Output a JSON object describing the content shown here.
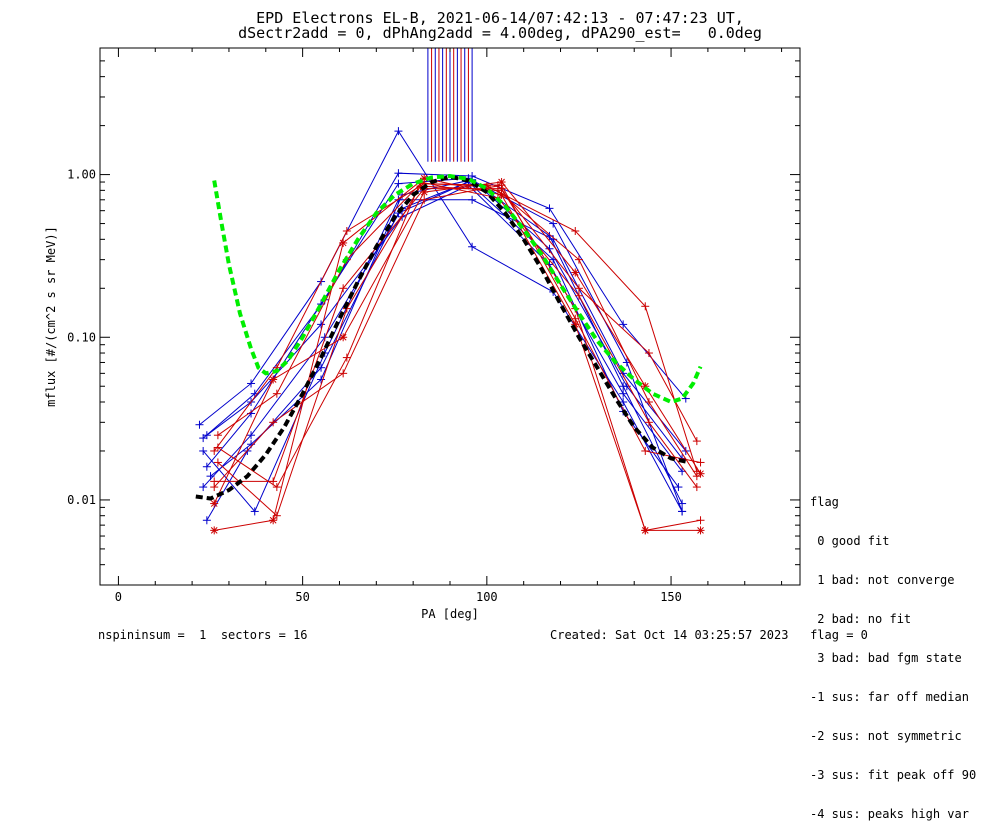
{
  "title_line1": "EPD Electrons EL-B, 2021-06-14/07:42:13 - 07:47:23 UT,",
  "title_line2": "dSectr2add = 0, dPhAng2add = 4.00deg, dPA290_est=   0.0deg",
  "footer": {
    "left": "nspininsum =  1  sectors = 16",
    "right": "Created: Sat Oct 14 03:25:57 2023   flag = 0"
  },
  "legend": {
    "title": "flag",
    "items": [
      " 0 good fit",
      " 1 bad: not converge",
      " 2 bad: no fit",
      " 3 bad: bad fgm state",
      "-1 sus: far off median",
      "-2 sus: not symmetric",
      "-3 sus: fit peak off 90",
      "-4 sus: peaks high var"
    ]
  },
  "chart_data": {
    "type": "line",
    "xlabel": "PA [deg]",
    "ylabel": "mflux [#/(cm^2 s sr MeV)]",
    "xlim": [
      -5,
      185
    ],
    "ylim": [
      0.003,
      6
    ],
    "yscale": "log",
    "xticks": [
      0,
      50,
      100,
      150
    ],
    "xtick_labels": [
      "0",
      "50",
      "100",
      "150"
    ],
    "yticks": [
      0.01,
      0.1,
      1.0
    ],
    "ytick_labels": [
      "0.01",
      "0.10",
      "1.00"
    ],
    "colors": {
      "blue": "#0000cc",
      "red": "#cc0000",
      "green": "#00ee00",
      "black": "#000000"
    },
    "vertical_markers": [
      {
        "x": 84,
        "color": "#0000cc"
      },
      {
        "x": 85,
        "color": "#cc0000"
      },
      {
        "x": 86,
        "color": "#0000cc"
      },
      {
        "x": 87,
        "color": "#cc0000"
      },
      {
        "x": 88,
        "color": "#0000cc"
      },
      {
        "x": 89,
        "color": "#cc0000"
      },
      {
        "x": 90,
        "color": "#0000cc"
      },
      {
        "x": 91,
        "color": "#cc0000"
      },
      {
        "x": 92,
        "color": "#0000cc"
      },
      {
        "x": 93,
        "color": "#cc0000"
      },
      {
        "x": 94,
        "color": "#0000cc"
      },
      {
        "x": 95,
        "color": "#cc0000"
      },
      {
        "x": 96,
        "color": "#0000cc"
      }
    ],
    "marker_top": 6,
    "marker_bottom": 1.2,
    "series": [
      {
        "color": "#0000cc",
        "marker": "plus",
        "x": [
          22,
          36,
          55,
          76,
          96,
          118,
          137,
          153
        ],
        "y": [
          0.029,
          0.052,
          0.22,
          1.85,
          0.36,
          0.19,
          0.04,
          0.0085
        ]
      },
      {
        "color": "#0000cc",
        "marker": "plus",
        "x": [
          23,
          37,
          56,
          76,
          96,
          117,
          137,
          154
        ],
        "y": [
          0.024,
          0.045,
          0.17,
          1.02,
          0.98,
          0.62,
          0.12,
          0.042
        ]
      },
      {
        "color": "#0000cc",
        "marker": "plus",
        "x": [
          24,
          36,
          55,
          76,
          95,
          118,
          138,
          153
        ],
        "y": [
          0.016,
          0.034,
          0.16,
          0.88,
          0.95,
          0.5,
          0.07,
          0.0085
        ]
      },
      {
        "color": "#0000cc",
        "marker": "plus",
        "x": [
          23,
          36,
          56,
          77,
          96,
          117,
          137,
          153
        ],
        "y": [
          0.012,
          0.025,
          0.1,
          0.62,
          0.92,
          0.42,
          0.05,
          0.0095
        ]
      },
      {
        "color": "#0000cc",
        "marker": "plus",
        "x": [
          24,
          35,
          55,
          76,
          95,
          118,
          137,
          152
        ],
        "y": [
          0.0075,
          0.02,
          0.065,
          0.58,
          0.9,
          0.3,
          0.035,
          0.012
        ]
      },
      {
        "color": "#0000cc",
        "marker": "plus",
        "x": [
          25,
          36,
          55,
          77,
          96,
          117,
          138,
          153
        ],
        "y": [
          0.014,
          0.022,
          0.055,
          0.75,
          0.93,
          0.35,
          0.05,
          0.018
        ]
      },
      {
        "color": "#0000cc",
        "marker": "plus",
        "x": [
          23,
          37,
          56,
          76,
          96,
          118,
          137,
          154
        ],
        "y": [
          0.02,
          0.0085,
          0.08,
          0.7,
          0.7,
          0.4,
          0.06,
          0.02
        ]
      },
      {
        "color": "#0000cc",
        "marker": "plus",
        "x": [
          24,
          36,
          55,
          77,
          95,
          117,
          137,
          153
        ],
        "y": [
          0.025,
          0.04,
          0.12,
          0.55,
          0.86,
          0.28,
          0.045,
          0.015
        ]
      },
      {
        "color": "#cc0000",
        "marker": "plus",
        "x": [
          26,
          43,
          62,
          83,
          100,
          124,
          143,
          157
        ],
        "y": [
          0.02,
          0.065,
          0.45,
          0.88,
          0.85,
          0.45,
          0.155,
          0.015
        ]
      },
      {
        "color": "#cc0000",
        "marker": "star",
        "x": [
          26,
          42,
          61,
          83,
          104,
          124,
          143,
          158
        ],
        "y": [
          0.0065,
          0.0075,
          0.38,
          0.95,
          0.75,
          0.12,
          0.0065,
          0.0065
        ]
      },
      {
        "color": "#cc0000",
        "marker": "plus",
        "x": [
          27,
          43,
          62,
          82,
          103,
          125,
          144,
          157
        ],
        "y": [
          0.025,
          0.045,
          0.3,
          0.88,
          0.86,
          0.2,
          0.08,
          0.023
        ]
      },
      {
        "color": "#cc0000",
        "marker": "plus",
        "x": [
          26,
          42,
          61,
          83,
          104,
          124,
          143,
          158
        ],
        "y": [
          0.013,
          0.013,
          0.2,
          0.82,
          0.82,
          0.15,
          0.0065,
          0.0075
        ]
      },
      {
        "color": "#cc0000",
        "marker": "plus",
        "x": [
          27,
          43,
          62,
          82,
          103,
          125,
          144,
          157
        ],
        "y": [
          0.017,
          0.008,
          0.15,
          0.85,
          0.8,
          0.3,
          0.04,
          0.014
        ]
      },
      {
        "color": "#cc0000",
        "marker": "star",
        "x": [
          26,
          42,
          61,
          83,
          104,
          124,
          143,
          158
        ],
        "y": [
          0.0095,
          0.055,
          0.1,
          0.78,
          0.9,
          0.25,
          0.05,
          0.0145
        ]
      },
      {
        "color": "#cc0000",
        "marker": "plus",
        "x": [
          27,
          43,
          62,
          82,
          103,
          125,
          144,
          157
        ],
        "y": [
          0.021,
          0.012,
          0.075,
          0.9,
          0.72,
          0.18,
          0.03,
          0.012
        ]
      },
      {
        "color": "#cc0000",
        "marker": "plus",
        "x": [
          26,
          42,
          61,
          83,
          104,
          124,
          143,
          158
        ],
        "y": [
          0.012,
          0.03,
          0.06,
          0.7,
          0.86,
          0.13,
          0.02,
          0.017
        ]
      }
    ],
    "fits": [
      {
        "color": "#000000",
        "x": [
          21,
          25,
          30,
          35,
          40,
          45,
          50,
          55,
          60,
          65,
          70,
          75,
          80,
          85,
          90,
          95,
          100,
          105,
          110,
          115,
          120,
          125,
          130,
          135,
          140,
          145,
          150,
          155
        ],
        "y": [
          0.0105,
          0.0102,
          0.0115,
          0.014,
          0.019,
          0.028,
          0.045,
          0.075,
          0.13,
          0.22,
          0.36,
          0.55,
          0.75,
          0.9,
          0.97,
          0.92,
          0.78,
          0.58,
          0.4,
          0.26,
          0.16,
          0.1,
          0.065,
          0.042,
          0.028,
          0.021,
          0.018,
          0.017
        ]
      },
      {
        "color": "#00ee00",
        "x": [
          26,
          28,
          30,
          33,
          36,
          38,
          40,
          43,
          46,
          50,
          55,
          60,
          65,
          70,
          75,
          80,
          85,
          90,
          95,
          100,
          105,
          110,
          115,
          120,
          125,
          130,
          135,
          140,
          145,
          150,
          153,
          156,
          158
        ],
        "y": [
          0.92,
          0.5,
          0.28,
          0.14,
          0.085,
          0.065,
          0.06,
          0.062,
          0.072,
          0.1,
          0.16,
          0.26,
          0.4,
          0.58,
          0.75,
          0.88,
          0.96,
          0.98,
          0.94,
          0.82,
          0.64,
          0.46,
          0.32,
          0.21,
          0.14,
          0.095,
          0.07,
          0.055,
          0.045,
          0.04,
          0.042,
          0.052,
          0.066
        ]
      }
    ]
  }
}
